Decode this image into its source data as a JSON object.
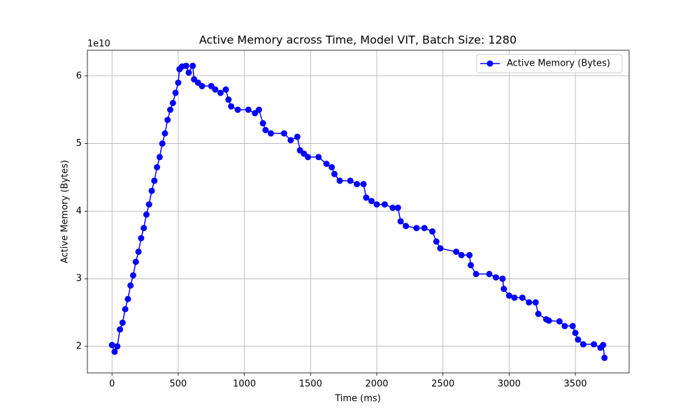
{
  "chart_data": {
    "type": "line",
    "title": "Active Memory across Time, Model VIT, Batch Size: 1280",
    "x_label": "Time (ms)",
    "y_label": "Active Memory (Bytes)",
    "y_offset_label": "1e10",
    "x": [
      0,
      20,
      40,
      60,
      80,
      100,
      120,
      140,
      160,
      180,
      200,
      220,
      240,
      260,
      280,
      300,
      320,
      340,
      360,
      380,
      400,
      420,
      440,
      460,
      480,
      500,
      510,
      530,
      560,
      580,
      610,
      620,
      650,
      680,
      750,
      780,
      820,
      860,
      880,
      900,
      950,
      1030,
      1080,
      1110,
      1140,
      1160,
      1200,
      1300,
      1350,
      1400,
      1420,
      1450,
      1480,
      1560,
      1620,
      1660,
      1680,
      1720,
      1800,
      1850,
      1900,
      1920,
      1960,
      2000,
      2060,
      2120,
      2160,
      2180,
      2220,
      2300,
      2360,
      2420,
      2450,
      2480,
      2600,
      2640,
      2700,
      2710,
      2750,
      2850,
      2900,
      2950,
      2960,
      3000,
      3040,
      3100,
      3150,
      3200,
      3220,
      3280,
      3300,
      3380,
      3420,
      3480,
      3500,
      3520,
      3560,
      3640,
      3690,
      3710,
      3720
    ],
    "series": [
      {
        "name": "Active Memory (Bytes)",
        "color": "#0000ff",
        "values": [
          2.02,
          1.92,
          2.0,
          2.25,
          2.35,
          2.55,
          2.7,
          2.9,
          3.05,
          3.25,
          3.4,
          3.6,
          3.75,
          3.95,
          4.1,
          4.3,
          4.45,
          4.65,
          4.8,
          5.0,
          5.15,
          5.35,
          5.5,
          5.6,
          5.75,
          5.9,
          6.1,
          6.14,
          6.15,
          6.05,
          6.15,
          5.95,
          5.9,
          5.85,
          5.85,
          5.8,
          5.75,
          5.8,
          5.65,
          5.55,
          5.5,
          5.5,
          5.45,
          5.5,
          5.3,
          5.2,
          5.15,
          5.15,
          5.05,
          5.1,
          4.9,
          4.85,
          4.8,
          4.8,
          4.7,
          4.65,
          4.55,
          4.45,
          4.45,
          4.4,
          4.4,
          4.2,
          4.15,
          4.1,
          4.1,
          4.05,
          4.05,
          3.85,
          3.78,
          3.75,
          3.75,
          3.7,
          3.55,
          3.45,
          3.4,
          3.35,
          3.35,
          3.2,
          3.07,
          3.07,
          3.02,
          3.0,
          2.85,
          2.75,
          2.72,
          2.72,
          2.65,
          2.65,
          2.48,
          2.4,
          2.38,
          2.37,
          2.3,
          2.3,
          2.2,
          2.1,
          2.03,
          2.03,
          1.98,
          2.02,
          1.83
        ]
      }
    ],
    "xlim": [
      -186,
      3906
    ],
    "ylim": [
      1.607,
      6.38
    ],
    "xticks": [
      0,
      500,
      1000,
      1500,
      2000,
      2500,
      3000,
      3500
    ],
    "yticks": [
      2,
      3,
      4,
      5,
      6
    ],
    "grid": true,
    "legend": "upper right"
  }
}
